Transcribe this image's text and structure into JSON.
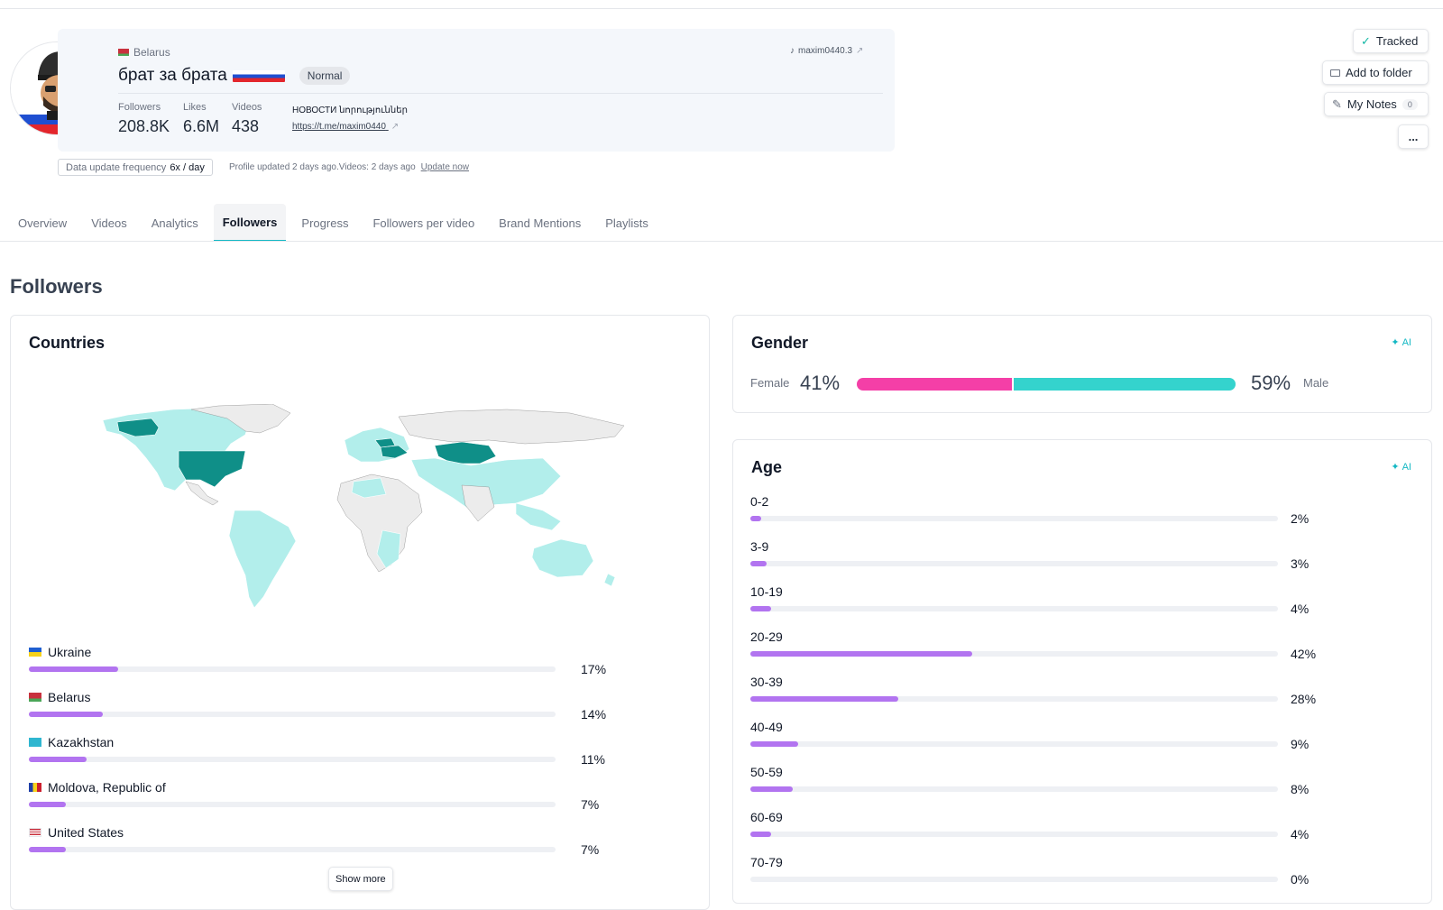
{
  "profile": {
    "country": "Belarus",
    "name": "брат за брата",
    "badge": "Normal",
    "tiktok_handle": "maxim0440.3",
    "bio": "НОВОСТИ նորություններ",
    "link": "https://t.me/maxim0440",
    "stats": [
      {
        "label": "Followers",
        "value": "208.8K"
      },
      {
        "label": "Likes",
        "value": "6.6M"
      },
      {
        "label": "Videos",
        "value": "438"
      }
    ],
    "frequency_label": "Data update frequency",
    "frequency_value": "6x / day",
    "updated_text": "Profile updated 2 days ago.Videos: 2 days ago",
    "update_now": "Update now"
  },
  "actions": {
    "tracked": "Tracked",
    "add_folder": "Add to folder",
    "notes": "My Notes",
    "notes_count": "0",
    "more": "..."
  },
  "tabs": [
    "Overview",
    "Videos",
    "Analytics",
    "Followers",
    "Progress",
    "Followers per video",
    "Brand Mentions",
    "Playlists"
  ],
  "active_tab": "Followers",
  "page_title": "Followers",
  "countries": {
    "title": "Countries",
    "items": [
      {
        "name": "Ukraine",
        "percent": "17%",
        "value": 17
      },
      {
        "name": "Belarus",
        "percent": "14%",
        "value": 14
      },
      {
        "name": "Kazakhstan",
        "percent": "11%",
        "value": 11
      },
      {
        "name": "Moldova, Republic of",
        "percent": "7%",
        "value": 7
      },
      {
        "name": "United States",
        "percent": "7%",
        "value": 7
      }
    ],
    "show_more": "Show more"
  },
  "gender": {
    "title": "Gender",
    "ai_label": "AI",
    "female_label": "Female",
    "female_pct": "41%",
    "female_value": 41,
    "male_label": "Male",
    "male_pct": "59%",
    "male_value": 59
  },
  "age": {
    "title": "Age",
    "ai_label": "AI",
    "items": [
      {
        "range": "0-2",
        "percent": "2%",
        "value": 2
      },
      {
        "range": "3-9",
        "percent": "3%",
        "value": 3
      },
      {
        "range": "10-19",
        "percent": "4%",
        "value": 4
      },
      {
        "range": "20-29",
        "percent": "42%",
        "value": 42
      },
      {
        "range": "30-39",
        "percent": "28%",
        "value": 28
      },
      {
        "range": "40-49",
        "percent": "9%",
        "value": 9
      },
      {
        "range": "50-59",
        "percent": "8%",
        "value": 8
      },
      {
        "range": "60-69",
        "percent": "4%",
        "value": 4
      },
      {
        "range": "70-79",
        "percent": "0%",
        "value": 0
      }
    ]
  },
  "colors": {
    "accent": "#14b8c4",
    "bar_purple": "#b274f0",
    "female": "#f43fa7",
    "male": "#34d3cd",
    "map_light": "#b2eeeb",
    "map_dark": "#0f8f88"
  }
}
